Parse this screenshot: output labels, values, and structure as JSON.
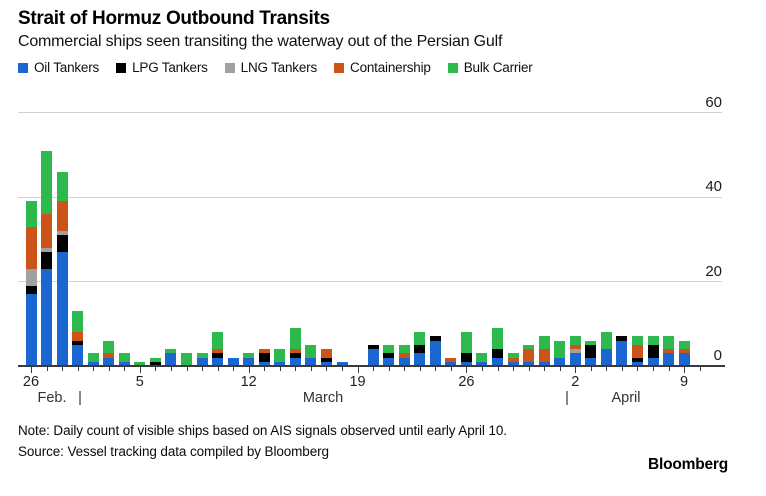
{
  "title": "Strait of Hormuz Outbound Transits",
  "subtitle": "Commercial ships seen transiting the waterway out of the Persian Gulf",
  "note": "Note: Daily count of visible ships based on AIS signals observed until early April 10.",
  "source": "Source: Vessel tracking data compiled by Bloomberg",
  "logo": "Bloomberg",
  "colors": {
    "oil": "#1b67d2",
    "lpg": "#000000",
    "lng": "#a1a1a1",
    "containership": "#cd5418",
    "bulk": "#2eb94e",
    "gridline": "#d2d2d2",
    "axis": "#3a3a3a"
  },
  "legend": [
    {
      "label": "Oil Tankers",
      "color": "#1b67d2"
    },
    {
      "label": "LPG Tankers",
      "color": "#000000"
    },
    {
      "label": "LNG Tankers",
      "color": "#a1a1a1"
    },
    {
      "label": "Containership",
      "color": "#cd5418"
    },
    {
      "label": "Bulk Carrier",
      "color": "#2eb94e"
    }
  ],
  "chart_data": {
    "type": "bar",
    "stacked": true,
    "title": "Strait of Hormuz Outbound Transits",
    "ylabel": "",
    "xlabel": "",
    "ylim": [
      0,
      60
    ],
    "yticks": [
      "0",
      "20",
      "40",
      "60"
    ],
    "grid": "horizontal",
    "legend_position": "top",
    "y_axis_side": "right",
    "categories": [
      "Feb 26",
      "Feb 27",
      "Feb 28",
      "Mar 1",
      "Mar 2",
      "Mar 3",
      "Mar 4",
      "Mar 5",
      "Mar 6",
      "Mar 7",
      "Mar 8",
      "Mar 9",
      "Mar 10",
      "Mar 11",
      "Mar 12",
      "Mar 13",
      "Mar 14",
      "Mar 15",
      "Mar 16",
      "Mar 17",
      "Mar 18",
      "Mar 19",
      "Mar 20",
      "Mar 21",
      "Mar 22",
      "Mar 23",
      "Mar 24",
      "Mar 25",
      "Mar 26",
      "Mar 27",
      "Mar 28",
      "Mar 29",
      "Mar 30",
      "Mar 31",
      "Apr 1",
      "Apr 2",
      "Apr 3",
      "Apr 4",
      "Apr 5",
      "Apr 6",
      "Apr 7",
      "Apr 8",
      "Apr 9"
    ],
    "series": [
      {
        "name": "Oil Tankers",
        "color": "#1b67d2",
        "values": [
          17,
          23,
          27,
          5,
          1,
          2,
          1,
          0,
          0,
          3,
          0,
          2,
          2,
          2,
          2,
          1,
          1,
          2,
          2,
          1,
          1,
          0,
          4,
          2,
          2,
          3,
          6,
          1,
          1,
          1,
          2,
          1,
          1,
          1,
          2,
          3,
          2,
          4,
          6,
          1,
          2,
          3,
          3
        ]
      },
      {
        "name": "LPG Tankers",
        "color": "#000000",
        "values": [
          2,
          4,
          4,
          1,
          0,
          0,
          0,
          0,
          1,
          0,
          0,
          0,
          1,
          0,
          0,
          2,
          0,
          1,
          0,
          1,
          0,
          0,
          1,
          1,
          0,
          2,
          1,
          0,
          2,
          0,
          2,
          0,
          0,
          0,
          0,
          0,
          3,
          0,
          1,
          1,
          3,
          0,
          0
        ]
      },
      {
        "name": "LNG Tankers",
        "color": "#a1a1a1",
        "values": [
          4,
          1,
          1,
          0,
          0,
          0,
          0,
          0,
          0,
          0,
          0,
          0,
          0,
          0,
          0,
          0,
          0,
          0,
          0,
          0,
          0,
          0,
          0,
          0,
          0,
          0,
          0,
          0,
          0,
          0,
          0,
          0,
          0,
          0,
          0,
          1,
          0,
          0,
          0,
          0,
          0,
          0,
          0
        ]
      },
      {
        "name": "Containership",
        "color": "#cd5418",
        "values": [
          10,
          8,
          7,
          2,
          0,
          1,
          0,
          0,
          0,
          0,
          0,
          0,
          1,
          0,
          0,
          1,
          0,
          1,
          0,
          2,
          0,
          0,
          0,
          0,
          1,
          0,
          0,
          1,
          0,
          0,
          0,
          1,
          3,
          3,
          0,
          1,
          0,
          0,
          0,
          3,
          0,
          1,
          1
        ]
      },
      {
        "name": "Bulk Carrier",
        "color": "#2eb94e",
        "values": [
          6,
          15,
          7,
          5,
          2,
          3,
          2,
          1,
          1,
          1,
          3,
          1,
          4,
          0,
          1,
          0,
          3,
          5,
          3,
          0,
          0,
          0,
          0,
          2,
          2,
          3,
          0,
          0,
          5,
          2,
          5,
          1,
          1,
          3,
          4,
          2,
          1,
          4,
          0,
          2,
          2,
          3,
          2
        ]
      }
    ],
    "x_week_labels": [
      {
        "text": "26",
        "day": 0
      },
      {
        "text": "5",
        "day": 7
      },
      {
        "text": "12",
        "day": 14
      },
      {
        "text": "19",
        "day": 21
      },
      {
        "text": "26",
        "day": 28
      },
      {
        "text": "2",
        "day": 35
      },
      {
        "text": "9",
        "day": 42
      }
    ],
    "month_row": [
      {
        "text": "Feb."
      },
      {
        "text": "|"
      },
      {
        "text": "March"
      },
      {
        "text": "|"
      },
      {
        "text": "April"
      }
    ]
  }
}
